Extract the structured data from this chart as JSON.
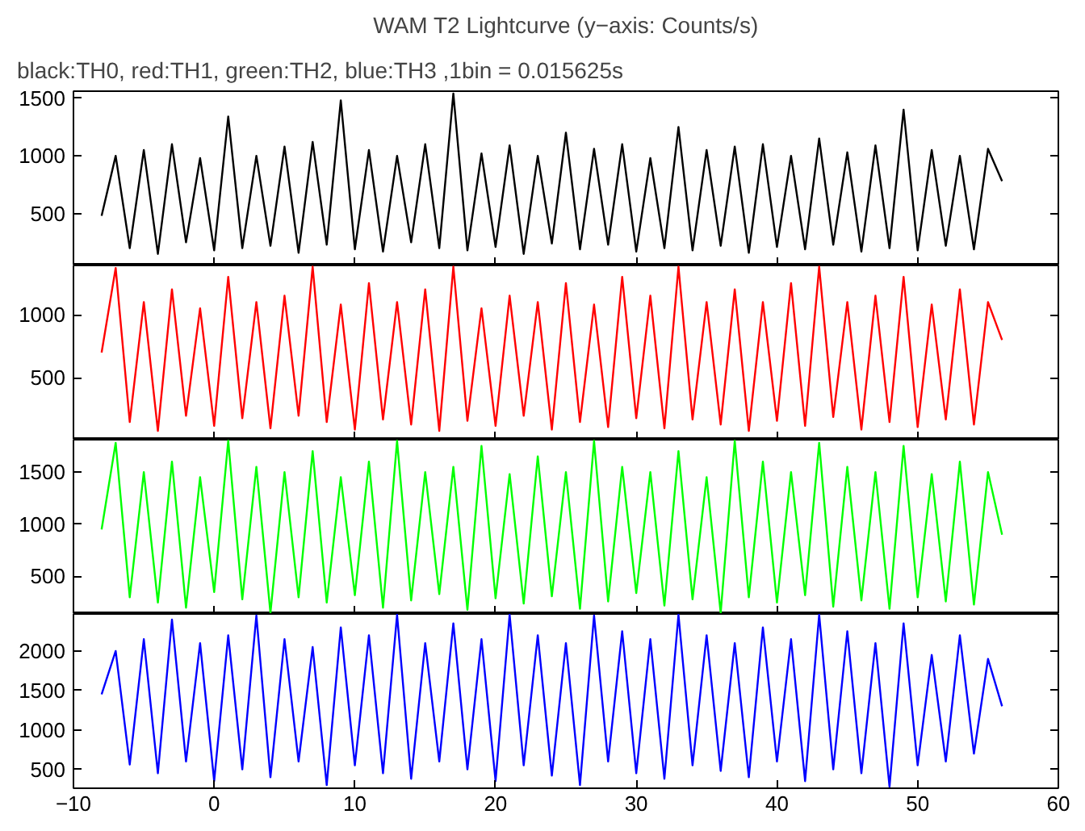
{
  "chart_data": [
    {
      "type": "line",
      "title": "WAM T2 Lightcurve (y−axis: Counts/s)",
      "subtitle": "black:TH0, red:TH1, green:TH2, blue:TH3 ,1bin = 0.015625s",
      "tick_labels": "y",
      "x": [
        -8,
        -7,
        -6,
        -5,
        -4,
        -3,
        -2,
        -1,
        0,
        1,
        2,
        3,
        4,
        5,
        6,
        7,
        8,
        9,
        10,
        11,
        12,
        13,
        14,
        15,
        16,
        17,
        18,
        19,
        20,
        21,
        22,
        23,
        24,
        25,
        26,
        27,
        28,
        29,
        30,
        31,
        32,
        33,
        34,
        35,
        36,
        37,
        38,
        39,
        40,
        41,
        42,
        43,
        44,
        45,
        46,
        47,
        48,
        49,
        50,
        51,
        52,
        53,
        54,
        55,
        56
      ],
      "xlim": [
        -10,
        60
      ],
      "xticks": [
        {
          "value": -10,
          "label": null
        },
        {
          "value": 0,
          "label": null
        },
        {
          "value": 10,
          "label": null
        },
        {
          "value": 20,
          "label": null
        },
        {
          "value": 30,
          "label": null
        },
        {
          "value": 40,
          "label": null
        },
        {
          "value": 50,
          "label": null
        },
        {
          "value": 60,
          "label": null
        }
      ],
      "ylim": [
        50,
        1560
      ],
      "yticks": [
        500,
        1000,
        1500
      ],
      "series": [
        {
          "color": "#000000",
          "values": [
            480,
            1000,
            200,
            1050,
            150,
            1100,
            250,
            980,
            180,
            1340,
            200,
            1000,
            220,
            1080,
            160,
            1120,
            230,
            1480,
            190,
            1050,
            170,
            1000,
            250,
            1100,
            200,
            1540,
            180,
            1020,
            210,
            1090,
            150,
            1000,
            240,
            1200,
            190,
            1060,
            230,
            1100,
            170,
            980,
            200,
            1250,
            180,
            1050,
            220,
            1080,
            160,
            1100,
            210,
            1000,
            190,
            1150,
            230,
            1030,
            170,
            1090,
            200,
            1400,
            180,
            1050,
            220,
            1000,
            190,
            1060,
            780
          ]
        }
      ]
    },
    {
      "type": "line",
      "tick_labels": "y",
      "x": [
        -8,
        -7,
        -6,
        -5,
        -4,
        -3,
        -2,
        -1,
        0,
        1,
        2,
        3,
        4,
        5,
        6,
        7,
        8,
        9,
        10,
        11,
        12,
        13,
        14,
        15,
        16,
        17,
        18,
        19,
        20,
        21,
        22,
        23,
        24,
        25,
        26,
        27,
        28,
        29,
        30,
        31,
        32,
        33,
        34,
        35,
        36,
        37,
        38,
        39,
        40,
        41,
        42,
        43,
        44,
        45,
        46,
        47,
        48,
        49,
        50,
        51,
        52,
        53,
        54,
        55,
        56
      ],
      "xlim": [
        -10,
        60
      ],
      "xticks": [
        {
          "value": -10,
          "label": null
        },
        {
          "value": 0,
          "label": null
        },
        {
          "value": 10,
          "label": null
        },
        {
          "value": 20,
          "label": null
        },
        {
          "value": 30,
          "label": null
        },
        {
          "value": 40,
          "label": null
        },
        {
          "value": 50,
          "label": null
        },
        {
          "value": 60,
          "label": null
        }
      ],
      "ylim": [
        10,
        1390
      ],
      "yticks": [
        500,
        1000
      ],
      "series": [
        {
          "color": "#ff0000",
          "values": [
            700,
            1370,
            150,
            1100,
            80,
            1200,
            200,
            1050,
            120,
            1300,
            180,
            1100,
            100,
            1150,
            200,
            1380,
            150,
            1080,
            90,
            1250,
            170,
            1100,
            130,
            1200,
            80,
            1380,
            160,
            1050,
            120,
            1150,
            200,
            1100,
            90,
            1250,
            150,
            1080,
            110,
            1300,
            180,
            1150,
            100,
            1380,
            170,
            1100,
            130,
            1200,
            80,
            1100,
            160,
            1250,
            120,
            1380,
            190,
            1100,
            90,
            1150,
            150,
            1300,
            110,
            1080,
            170,
            1200,
            130,
            1100,
            800
          ]
        }
      ]
    },
    {
      "type": "line",
      "tick_labels": "y",
      "x": [
        -8,
        -7,
        -6,
        -5,
        -4,
        -3,
        -2,
        -1,
        0,
        1,
        2,
        3,
        4,
        5,
        6,
        7,
        8,
        9,
        10,
        11,
        12,
        13,
        14,
        15,
        16,
        17,
        18,
        19,
        20,
        21,
        22,
        23,
        24,
        25,
        26,
        27,
        28,
        29,
        30,
        31,
        32,
        33,
        34,
        35,
        36,
        37,
        38,
        39,
        40,
        41,
        42,
        43,
        44,
        45,
        46,
        47,
        48,
        49,
        50,
        51,
        52,
        53,
        54,
        55,
        56
      ],
      "xlim": [
        -10,
        60
      ],
      "xticks": [
        {
          "value": -10,
          "label": null
        },
        {
          "value": 0,
          "label": null
        },
        {
          "value": 10,
          "label": null
        },
        {
          "value": 20,
          "label": null
        },
        {
          "value": 30,
          "label": null
        },
        {
          "value": 40,
          "label": null
        },
        {
          "value": 50,
          "label": null
        },
        {
          "value": 60,
          "label": null
        }
      ],
      "ylim": [
        140,
        1810
      ],
      "yticks": [
        500,
        1000,
        1500
      ],
      "series": [
        {
          "color": "#00ff00",
          "values": [
            950,
            1780,
            300,
            1500,
            250,
            1600,
            200,
            1450,
            350,
            1800,
            280,
            1550,
            150,
            1500,
            300,
            1700,
            250,
            1450,
            320,
            1600,
            200,
            1800,
            270,
            1500,
            330,
            1550,
            180,
            1750,
            290,
            1480,
            240,
            1650,
            310,
            1500,
            190,
            1800,
            260,
            1550,
            340,
            1500,
            220,
            1700,
            280,
            1450,
            150,
            1800,
            300,
            1600,
            250,
            1500,
            320,
            1780,
            210,
            1550,
            270,
            1500,
            190,
            1750,
            300,
            1480,
            260,
            1600,
            230,
            1500,
            900
          ]
        }
      ]
    },
    {
      "type": "line",
      "x": [
        -8,
        -7,
        -6,
        -5,
        -4,
        -3,
        -2,
        -1,
        0,
        1,
        2,
        3,
        4,
        5,
        6,
        7,
        8,
        9,
        10,
        11,
        12,
        13,
        14,
        15,
        16,
        17,
        18,
        19,
        20,
        21,
        22,
        23,
        24,
        25,
        26,
        27,
        28,
        29,
        30,
        31,
        32,
        33,
        34,
        35,
        36,
        37,
        38,
        39,
        40,
        41,
        42,
        43,
        44,
        45,
        46,
        47,
        48,
        49,
        50,
        51,
        52,
        53,
        54,
        55,
        56
      ],
      "xlim": [
        -10,
        60
      ],
      "xticks": [
        -10,
        0,
        10,
        20,
        30,
        40,
        50,
        60
      ],
      "ylim": [
        260,
        2470
      ],
      "yticks": [
        500,
        1000,
        1500,
        2000
      ],
      "series": [
        {
          "color": "#0000ff",
          "values": [
            1450,
            2000,
            560,
            2150,
            450,
            2400,
            600,
            2100,
            350,
            2200,
            500,
            2450,
            400,
            2150,
            600,
            2050,
            300,
            2300,
            550,
            2200,
            450,
            2460,
            380,
            2100,
            600,
            2350,
            500,
            2150,
            350,
            2460,
            550,
            2200,
            420,
            2100,
            300,
            2450,
            600,
            2250,
            450,
            2150,
            380,
            2460,
            550,
            2200,
            480,
            2100,
            400,
            2300,
            600,
            2150,
            350,
            2460,
            500,
            2250,
            450,
            2100,
            280,
            2350,
            550,
            1950,
            600,
            2200,
            700,
            1900,
            1300
          ]
        }
      ]
    }
  ]
}
